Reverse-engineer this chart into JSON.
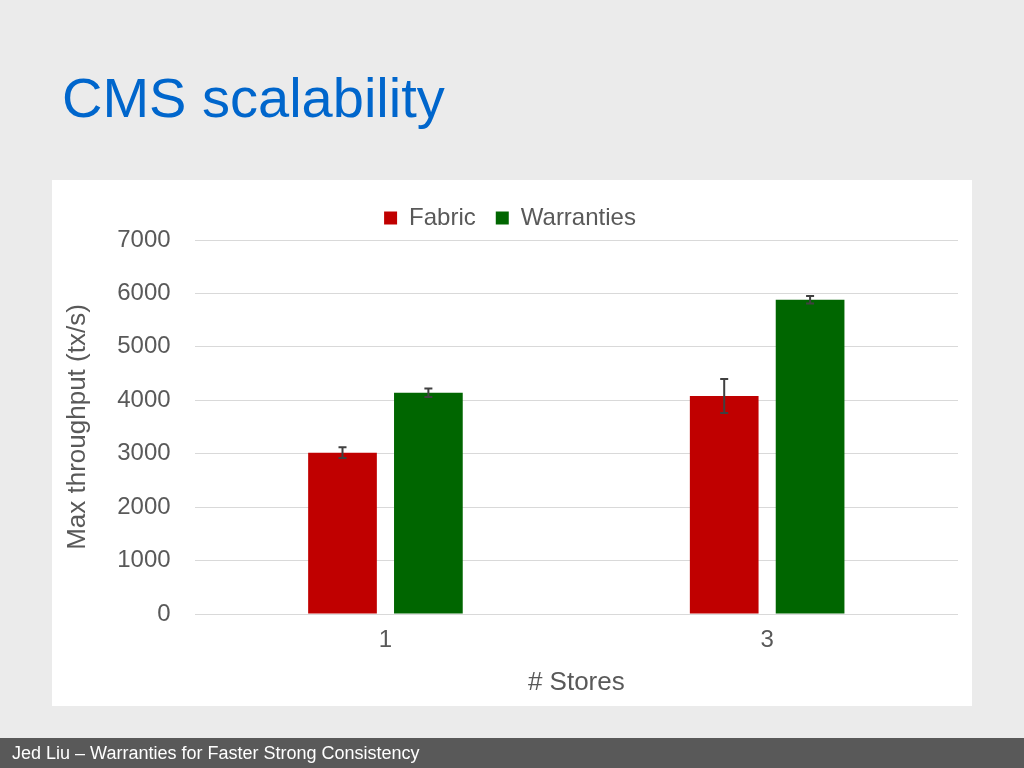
{
  "chart_data": {
    "type": "bar",
    "title": "CMS scalability",
    "xlabel": "# Stores",
    "ylabel": "Max throughput (tx/s)",
    "categories": [
      "1",
      "3"
    ],
    "series": [
      {
        "name": "Fabric",
        "color": "#c00000",
        "values": [
          3020,
          4080
        ],
        "errors": [
          100,
          320
        ]
      },
      {
        "name": "Warranties",
        "color": "#006600",
        "values": [
          4140,
          5880
        ],
        "errors": [
          80,
          70
        ]
      }
    ],
    "ylim": [
      0,
      7000
    ],
    "yticks": [
      0,
      1000,
      2000,
      3000,
      4000,
      5000,
      6000,
      7000
    ],
    "grid": "y",
    "legend": "top",
    "annotations": [
      "Jed Liu – Warranties for Faster Strong Consistency"
    ]
  }
}
